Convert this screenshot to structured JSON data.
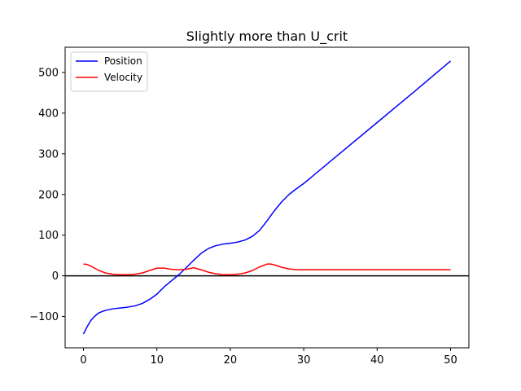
{
  "chart_data": {
    "type": "line",
    "title": "Slightly more than U_crit",
    "xlabel": "",
    "ylabel": "",
    "xlim": [
      -2.5,
      52.5
    ],
    "ylim": [
      -177,
      562
    ],
    "xticks": [
      0,
      10,
      20,
      30,
      40,
      50
    ],
    "yticks": [
      -100,
      0,
      100,
      200,
      300,
      400,
      500
    ],
    "grid": false,
    "legend": "top-left",
    "reference_lines": [
      {
        "axis": "y",
        "value": 0,
        "color": "#000000"
      }
    ],
    "series": [
      {
        "name": "Position",
        "color": "#0000ff",
        "x": [
          0,
          0.5,
          1,
          1.5,
          2,
          2.5,
          3,
          4,
          5,
          6,
          7,
          8,
          9,
          10,
          11,
          12,
          13,
          14,
          15,
          16,
          17,
          18,
          19,
          20,
          21,
          22,
          23,
          24,
          25,
          26,
          27,
          28,
          29,
          30,
          35,
          40,
          45,
          50
        ],
        "values": [
          -143,
          -125,
          -110,
          -100,
          -92,
          -88,
          -85,
          -81,
          -79,
          -77,
          -74,
          -68,
          -58,
          -45,
          -27,
          -12,
          3,
          20,
          38,
          55,
          67,
          74,
          78,
          80,
          83,
          88,
          97,
          112,
          135,
          160,
          182,
          200,
          214,
          227,
          302,
          377,
          452,
          528
        ]
      },
      {
        "name": "Velocity",
        "color": "#ff0000",
        "x": [
          0,
          0.5,
          1,
          2,
          3,
          4,
          5,
          6,
          7,
          8,
          9,
          10,
          11,
          12,
          13,
          14,
          15,
          16,
          17,
          18,
          19,
          20,
          21,
          22,
          23,
          24,
          25,
          25.5,
          26,
          27,
          28,
          29,
          30,
          35,
          40,
          45,
          50
        ],
        "values": [
          29,
          28,
          24,
          14,
          7,
          4,
          3,
          3,
          4,
          7,
          13,
          19,
          19,
          16,
          15,
          16,
          20,
          15,
          9,
          5,
          3,
          3,
          4,
          7,
          13,
          22,
          29,
          29,
          27,
          21,
          17,
          15,
          15,
          15,
          15,
          15,
          15
        ]
      }
    ]
  }
}
